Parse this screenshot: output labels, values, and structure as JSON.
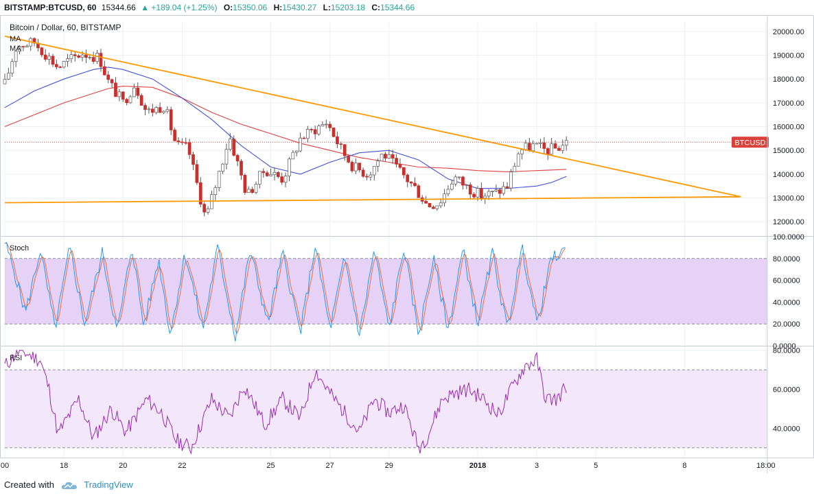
{
  "header": {
    "symbol": "BITSTAMP:BTCUSD, 60",
    "last": "15344.66",
    "change": "▲ +189.04 (+1.25%)",
    "o_label": "O:",
    "o_value": "15350.06",
    "h_label": "H:",
    "h_value": "15430.27",
    "l_label": "L:",
    "l_value": "15203.18",
    "c_label": "C:",
    "c_value": "15344.66"
  },
  "footer": {
    "created_with": "Created with",
    "brand": "TradingView"
  },
  "colors": {
    "grid": "#eef1f5",
    "border": "#c8ccd3",
    "trendline": "#ff9800",
    "ma_blue": "#3f51d8",
    "ma_red": "#e04040",
    "candle_up": "#ffffff",
    "candle_down": "#c9302c",
    "wick": "#555555",
    "stoch_band": "#e6d2f7",
    "stoch_k": "#2196f3",
    "stoch_d": "#f06a3a",
    "rsi_band": "#f2e7fb",
    "rsi_line": "#9c27b0",
    "price_tag": "#d9413a"
  },
  "chart_data": [
    {
      "type": "candlestick",
      "title": "Bitcoin / Dollar, 60, BITSTAMP",
      "overlay_labels": [
        "MA",
        "MA"
      ],
      "price_tag": "BTCUSD",
      "last_price": 15344.66,
      "ylim": [
        11400,
        20400
      ],
      "y_ticks": [
        "20000.00",
        "19000.00",
        "18000.00",
        "17000.00",
        "16000.00",
        "15000.00",
        "14000.00",
        "13000.00",
        "12000.00"
      ],
      "x_ticks": [
        "00",
        "18",
        "20",
        "22",
        "25",
        "27",
        "29",
        "2018",
        "3",
        "5",
        "8",
        "18:00"
      ],
      "x_tick_days": [
        0,
        2,
        4,
        6,
        9,
        11,
        13,
        16,
        18,
        20,
        23,
        25.75
      ],
      "x_range_days": [
        0,
        25.8
      ],
      "anchors_day": [
        0,
        0.4,
        1.0,
        1.8,
        2.6,
        3.2,
        3.5,
        4.0,
        4.4,
        4.8,
        5.4,
        5.8,
        6.2,
        6.8,
        7.6,
        8.2,
        8.8,
        9.4,
        10.0,
        10.5,
        10.9,
        11.4,
        11.8,
        12.3,
        12.8,
        13.3,
        13.9,
        14.3,
        14.7,
        15.2,
        15.6,
        16.1,
        16.6,
        17.0,
        17.4,
        17.9,
        18.3,
        18.7,
        19.0
      ],
      "anchors_price": [
        17800,
        19400,
        19550,
        18500,
        19100,
        18900,
        17900,
        17000,
        17800,
        16600,
        16900,
        15200,
        15100,
        12100,
        15600,
        13100,
        14200,
        13800,
        15500,
        15900,
        16200,
        15000,
        14300,
        14000,
        14900,
        14200,
        13400,
        12700,
        12800,
        13900,
        13500,
        13100,
        13200,
        13500,
        15000,
        15200,
        15000,
        15100,
        15345
      ],
      "ma_blue_day": [
        0,
        1,
        2,
        3,
        3.5,
        4,
        5,
        6,
        7,
        8,
        9,
        10,
        11,
        12,
        13,
        14,
        15,
        16,
        17,
        18,
        18.5,
        19
      ],
      "ma_blue": [
        16800,
        17500,
        18000,
        18400,
        18500,
        18400,
        18000,
        17200,
        16300,
        15200,
        14300,
        14000,
        14500,
        14900,
        15000,
        14600,
        13800,
        13400,
        13400,
        13500,
        13650,
        13900
      ],
      "ma_red_day": [
        0,
        1,
        2,
        3,
        3.5,
        4,
        5,
        6,
        7,
        8,
        9,
        10,
        11,
        12,
        13,
        14,
        15,
        16,
        17,
        18,
        19
      ],
      "ma_red": [
        16000,
        16500,
        17000,
        17400,
        17600,
        17700,
        17650,
        17200,
        16600,
        16100,
        15700,
        15300,
        15000,
        14700,
        14500,
        14300,
        14250,
        14150,
        14100,
        14150,
        14200
      ],
      "trendlines": [
        {
          "name": "descending",
          "day": [
            0,
            24.9
          ],
          "price": [
            19800,
            13050
          ]
        },
        {
          "name": "support",
          "day": [
            0,
            24.9
          ],
          "price": [
            12800,
            13050
          ]
        }
      ]
    },
    {
      "type": "line",
      "title": "Stoch",
      "ylim": [
        0,
        100
      ],
      "band": [
        20,
        80
      ],
      "y_ticks": [
        "100.0000",
        "80.0000",
        "60.0000",
        "40.0000",
        "20.0000",
        "0.0000"
      ],
      "k_anchors_day": [
        0,
        0.3,
        0.7,
        1.2,
        1.7,
        2.2,
        2.7,
        3.3,
        3.8,
        4.3,
        4.7,
        5.2,
        5.6,
        6.1,
        6.7,
        7.2,
        7.8,
        8.3,
        8.9,
        9.4,
        10.0,
        10.5,
        11.0,
        11.5,
        12.0,
        12.5,
        13.0,
        13.5,
        14.0,
        14.5,
        15.0,
        15.5,
        16.0,
        16.5,
        17.0,
        17.5,
        18.0,
        18.5,
        19.0
      ],
      "k_anchors": [
        95,
        70,
        30,
        88,
        15,
        90,
        20,
        85,
        12,
        92,
        18,
        80,
        10,
        85,
        15,
        90,
        8,
        88,
        20,
        85,
        12,
        92,
        15,
        80,
        10,
        88,
        15,
        90,
        10,
        80,
        15,
        88,
        20,
        85,
        15,
        90,
        20,
        80,
        88
      ]
    },
    {
      "type": "line",
      "title": "RSI",
      "ylim": [
        25,
        82
      ],
      "band": [
        30,
        70
      ],
      "y_ticks": [
        "80.0000",
        "60.0000",
        "40.0000"
      ],
      "anchors_day": [
        0,
        0.5,
        1.2,
        1.5,
        1.8,
        2.5,
        3.0,
        3.6,
        4.1,
        4.8,
        5.3,
        5.8,
        6.3,
        7.0,
        7.6,
        8.1,
        8.8,
        9.4,
        10.0,
        10.5,
        11.0,
        11.5,
        12.0,
        12.5,
        13.0,
        13.5,
        14.0,
        14.3,
        14.8,
        15.2,
        15.7,
        16.2,
        16.7,
        17.2,
        17.6,
        18.0,
        18.3,
        18.7,
        19.0
      ],
      "values": [
        72,
        80,
        75,
        60,
        37,
        55,
        35,
        50,
        38,
        55,
        48,
        34,
        30,
        55,
        45,
        62,
        42,
        55,
        45,
        70,
        58,
        48,
        38,
        55,
        48,
        52,
        30,
        36,
        55,
        58,
        60,
        55,
        47,
        62,
        72,
        75,
        55,
        55,
        62
      ]
    }
  ]
}
